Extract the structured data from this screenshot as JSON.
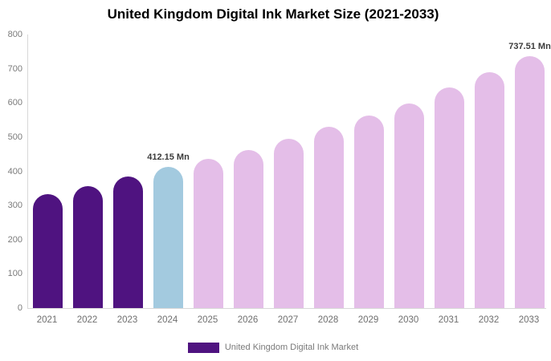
{
  "legend": {
    "label": "United Kingdom Digital Ink Market",
    "swatch_color": "#4f1380"
  },
  "colors": {
    "historical_bar": "#4f1380",
    "current_year_bar": "#a3cadf",
    "forecast_bar": "#e4bee8",
    "axis_line": "#d8d8d8",
    "tick_text": "#7a7a7a",
    "annotation_text": "#3b3b3b",
    "title_text": "#000000",
    "background": "#ffffff"
  },
  "chart_data": {
    "type": "bar",
    "title": "United Kingdom Digital Ink Market Size (2021-2033)",
    "unit": "Mn",
    "categories": [
      "2021",
      "2022",
      "2023",
      "2024",
      "2025",
      "2026",
      "2027",
      "2028",
      "2029",
      "2030",
      "2031",
      "2032",
      "2033"
    ],
    "values": [
      333,
      357,
      384,
      412.15,
      437,
      463,
      496,
      530,
      564,
      599,
      645,
      690,
      737.51
    ],
    "bar_colors": [
      "#4f1380",
      "#4f1380",
      "#4f1380",
      "#a3cadf",
      "#e4bee8",
      "#e4bee8",
      "#e4bee8",
      "#e4bee8",
      "#e4bee8",
      "#e4bee8",
      "#e4bee8",
      "#e4bee8",
      "#e4bee8"
    ],
    "xlabel": "",
    "ylabel": "",
    "ylim": [
      0,
      800
    ],
    "ytick_step": 100,
    "grid": false,
    "legend_position": "bottom",
    "annotations": [
      {
        "category": "2024",
        "label": "412.15 Mn"
      },
      {
        "category": "2033",
        "label": "737.51 Mn"
      }
    ]
  }
}
